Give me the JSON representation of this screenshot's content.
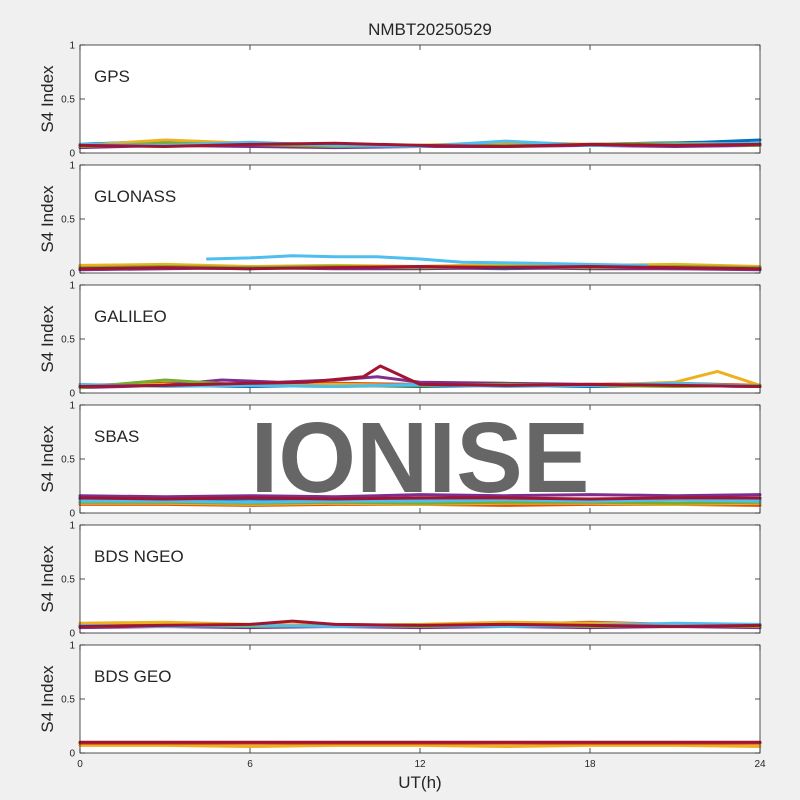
{
  "figure": {
    "title": "NMBT20250529",
    "xlabel": "UT(h)",
    "watermark": "IONISE"
  },
  "chart_data": [
    {
      "type": "line",
      "panel": "GPS",
      "ylabel": "S4 Index",
      "xlim": [
        0,
        24
      ],
      "ylim": [
        0,
        1
      ],
      "xticks": [
        "0",
        "6",
        "12",
        "18",
        "24"
      ],
      "yticks": [
        "0",
        "0.5",
        "1"
      ],
      "series": [
        {
          "color": "#0072BD",
          "x": [
            0,
            2,
            4,
            6,
            8,
            10,
            12,
            14,
            16,
            18,
            20,
            22,
            24
          ],
          "y": [
            0.08,
            0.1,
            0.09,
            0.07,
            0.08,
            0.07,
            0.06,
            0.08,
            0.07,
            0.08,
            0.09,
            0.1,
            0.12
          ]
        },
        {
          "color": "#D95319",
          "x": [
            0,
            3,
            6,
            9,
            12,
            15,
            18,
            21,
            24
          ],
          "y": [
            0.06,
            0.08,
            0.07,
            0.06,
            0.07,
            0.08,
            0.07,
            0.09,
            0.08
          ]
        },
        {
          "color": "#EDB120",
          "x": [
            0,
            3,
            6,
            9,
            12,
            15,
            18,
            21,
            24
          ],
          "y": [
            0.07,
            0.12,
            0.09,
            0.08,
            0.07,
            0.1,
            0.08,
            0.09,
            0.08
          ]
        },
        {
          "color": "#7E2F8E",
          "x": [
            0,
            3,
            6,
            9,
            12,
            15,
            18,
            21,
            24
          ],
          "y": [
            0.05,
            0.07,
            0.06,
            0.05,
            0.06,
            0.06,
            0.07,
            0.06,
            0.07
          ]
        },
        {
          "color": "#77AC30",
          "x": [
            0,
            3,
            6,
            9,
            12,
            15,
            18,
            21,
            24
          ],
          "y": [
            0.06,
            0.09,
            0.08,
            0.06,
            0.07,
            0.07,
            0.08,
            0.09,
            0.07
          ]
        },
        {
          "color": "#4DBEEE",
          "x": [
            0,
            3,
            6,
            9,
            12,
            15,
            18,
            21,
            24
          ],
          "y": [
            0.08,
            0.07,
            0.1,
            0.07,
            0.06,
            0.11,
            0.07,
            0.08,
            0.09
          ]
        },
        {
          "color": "#A2142F",
          "x": [
            0,
            3,
            6,
            9,
            12,
            15,
            18,
            21,
            24
          ],
          "y": [
            0.07,
            0.06,
            0.08,
            0.09,
            0.07,
            0.06,
            0.08,
            0.07,
            0.08
          ]
        }
      ]
    },
    {
      "type": "line",
      "panel": "GLONASS",
      "ylabel": "S4 Index",
      "xlim": [
        0,
        24
      ],
      "ylim": [
        0,
        1
      ],
      "xticks": [
        "0",
        "6",
        "12",
        "18",
        "24"
      ],
      "yticks": [
        "0",
        "0.5",
        "1"
      ],
      "series": [
        {
          "color": "#0072BD",
          "x": [
            0,
            3,
            6,
            9,
            12,
            15,
            18,
            21,
            24
          ],
          "y": [
            0.04,
            0.05,
            0.04,
            0.06,
            0.05,
            0.04,
            0.05,
            0.04,
            0.05
          ]
        },
        {
          "color": "#D95319",
          "x": [
            0,
            3,
            6,
            9,
            12,
            15,
            18,
            21,
            24
          ],
          "y": [
            0.06,
            0.05,
            0.06,
            0.05,
            0.06,
            0.07,
            0.06,
            0.05,
            0.04
          ]
        },
        {
          "color": "#EDB120",
          "x": [
            0,
            3,
            6,
            9,
            12,
            15,
            18,
            21,
            24
          ],
          "y": [
            0.07,
            0.08,
            0.06,
            0.07,
            0.06,
            0.08,
            0.07,
            0.08,
            0.06
          ]
        },
        {
          "color": "#7E2F8E",
          "x": [
            0,
            3,
            6,
            9,
            12,
            15,
            18,
            21,
            24
          ],
          "y": [
            0.03,
            0.04,
            0.05,
            0.04,
            0.04,
            0.05,
            0.04,
            0.04,
            0.03
          ]
        },
        {
          "color": "#77AC30",
          "x": [
            0,
            3,
            6,
            9,
            12,
            15,
            18,
            21,
            24
          ],
          "y": [
            0.05,
            0.06,
            0.05,
            0.06,
            0.05,
            0.06,
            0.05,
            0.06,
            0.05
          ]
        },
        {
          "color": "#4DBEEE",
          "x": [
            4.5,
            6,
            7.5,
            9,
            10.5,
            12,
            13.5,
            16,
            18,
            20
          ],
          "y": [
            0.13,
            0.14,
            0.16,
            0.15,
            0.15,
            0.13,
            0.1,
            0.09,
            0.08,
            0.07
          ]
        },
        {
          "color": "#A2142F",
          "x": [
            0,
            3,
            6,
            9,
            12,
            15,
            18,
            21,
            24
          ],
          "y": [
            0.04,
            0.05,
            0.04,
            0.05,
            0.06,
            0.05,
            0.06,
            0.05,
            0.04
          ]
        }
      ]
    },
    {
      "type": "line",
      "panel": "GALILEO",
      "ylabel": "S4 Index",
      "xlim": [
        0,
        24
      ],
      "ylim": [
        0,
        1
      ],
      "xticks": [
        "0",
        "6",
        "12",
        "18",
        "24"
      ],
      "yticks": [
        "0",
        "0.5",
        "1"
      ],
      "series": [
        {
          "color": "#0072BD",
          "x": [
            0,
            3,
            6,
            9,
            12,
            15,
            18,
            21,
            24
          ],
          "y": [
            0.06,
            0.07,
            0.06,
            0.07,
            0.06,
            0.07,
            0.06,
            0.07,
            0.06
          ]
        },
        {
          "color": "#D95319",
          "x": [
            0,
            3,
            6,
            9,
            12,
            15,
            18,
            21,
            24
          ],
          "y": [
            0.07,
            0.09,
            0.08,
            0.09,
            0.08,
            0.07,
            0.08,
            0.09,
            0.07
          ]
        },
        {
          "color": "#EDB120",
          "x": [
            0,
            3,
            6,
            9,
            12,
            15,
            18,
            21,
            22.5,
            24
          ],
          "y": [
            0.06,
            0.08,
            0.07,
            0.08,
            0.07,
            0.08,
            0.07,
            0.1,
            0.2,
            0.07
          ]
        },
        {
          "color": "#7E2F8E",
          "x": [
            0,
            3,
            5,
            7,
            9,
            10.5,
            12,
            15,
            18,
            21,
            24
          ],
          "y": [
            0.05,
            0.07,
            0.12,
            0.1,
            0.12,
            0.15,
            0.1,
            0.09,
            0.08,
            0.07,
            0.06
          ]
        },
        {
          "color": "#77AC30",
          "x": [
            0,
            3,
            6,
            9,
            12,
            15,
            18,
            21,
            24
          ],
          "y": [
            0.05,
            0.12,
            0.07,
            0.06,
            0.07,
            0.08,
            0.07,
            0.06,
            0.07
          ]
        },
        {
          "color": "#4DBEEE",
          "x": [
            0,
            3,
            6,
            9,
            12,
            15,
            18,
            21,
            24
          ],
          "y": [
            0.08,
            0.06,
            0.07,
            0.06,
            0.08,
            0.06,
            0.07,
            0.09,
            0.06
          ]
        },
        {
          "color": "#A2142F",
          "x": [
            0,
            3,
            6,
            8,
            10,
            10.6,
            12,
            15,
            18,
            21,
            24
          ],
          "y": [
            0.06,
            0.07,
            0.09,
            0.1,
            0.15,
            0.25,
            0.08,
            0.07,
            0.08,
            0.07,
            0.06
          ]
        }
      ]
    },
    {
      "type": "line",
      "panel": "SBAS",
      "ylabel": "S4 Index",
      "xlim": [
        0,
        24
      ],
      "ylim": [
        0,
        1
      ],
      "xticks": [
        "0",
        "6",
        "12",
        "18",
        "24"
      ],
      "yticks": [
        "0",
        "0.5",
        "1"
      ],
      "series": [
        {
          "color": "#0072BD",
          "x": [
            0,
            3,
            6,
            9,
            12,
            15,
            18,
            21,
            24
          ],
          "y": [
            0.13,
            0.12,
            0.13,
            0.12,
            0.13,
            0.13,
            0.12,
            0.13,
            0.12
          ]
        },
        {
          "color": "#D95319",
          "x": [
            0,
            3,
            6,
            9,
            12,
            15,
            18,
            21,
            24
          ],
          "y": [
            0.08,
            0.08,
            0.07,
            0.08,
            0.08,
            0.07,
            0.08,
            0.08,
            0.07
          ]
        },
        {
          "color": "#EDB120",
          "x": [
            0,
            3,
            6,
            9,
            12,
            15,
            18,
            21,
            24
          ],
          "y": [
            0.09,
            0.09,
            0.08,
            0.09,
            0.08,
            0.09,
            0.09,
            0.08,
            0.09
          ]
        },
        {
          "color": "#7E2F8E",
          "x": [
            0,
            3,
            6,
            9,
            12,
            15,
            18,
            21,
            24
          ],
          "y": [
            0.16,
            0.15,
            0.16,
            0.15,
            0.17,
            0.16,
            0.17,
            0.16,
            0.17
          ]
        },
        {
          "color": "#77AC30",
          "x": [
            0,
            3,
            6,
            9,
            12,
            15,
            18,
            21,
            24
          ],
          "y": [
            0.1,
            0.1,
            0.09,
            0.1,
            0.09,
            0.1,
            0.1,
            0.09,
            0.1
          ]
        },
        {
          "color": "#4DBEEE",
          "x": [
            0,
            3,
            6,
            9,
            12,
            15,
            18,
            21,
            24
          ],
          "y": [
            0.11,
            0.11,
            0.1,
            0.11,
            0.11,
            0.12,
            0.11,
            0.12,
            0.11
          ]
        },
        {
          "color": "#A2142F",
          "x": [
            0,
            3,
            6,
            9,
            12,
            15,
            18,
            21,
            24
          ],
          "y": [
            0.14,
            0.13,
            0.14,
            0.13,
            0.14,
            0.14,
            0.13,
            0.14,
            0.14
          ]
        }
      ]
    },
    {
      "type": "line",
      "panel": "BDS NGEO",
      "ylabel": "S4 Index",
      "xlim": [
        0,
        24
      ],
      "ylim": [
        0,
        1
      ],
      "xticks": [
        "0",
        "6",
        "12",
        "18",
        "24"
      ],
      "yticks": [
        "0",
        "0.5",
        "1"
      ],
      "series": [
        {
          "color": "#0072BD",
          "x": [
            0,
            3,
            6,
            9,
            12,
            15,
            18,
            21,
            24
          ],
          "y": [
            0.07,
            0.06,
            0.07,
            0.06,
            0.07,
            0.06,
            0.07,
            0.06,
            0.07
          ]
        },
        {
          "color": "#D95319",
          "x": [
            0,
            3,
            6,
            9,
            12,
            15,
            18,
            21,
            24
          ],
          "y": [
            0.06,
            0.08,
            0.07,
            0.08,
            0.07,
            0.08,
            0.1,
            0.08,
            0.07
          ]
        },
        {
          "color": "#EDB120",
          "x": [
            0,
            3,
            6,
            9,
            12,
            15,
            18,
            21,
            24
          ],
          "y": [
            0.09,
            0.1,
            0.08,
            0.07,
            0.08,
            0.1,
            0.09,
            0.08,
            0.07
          ]
        },
        {
          "color": "#7E2F8E",
          "x": [
            0,
            3,
            6,
            9,
            12,
            15,
            18,
            21,
            24
          ],
          "y": [
            0.05,
            0.06,
            0.05,
            0.06,
            0.05,
            0.06,
            0.05,
            0.06,
            0.05
          ]
        },
        {
          "color": "#77AC30",
          "x": [
            0,
            3,
            6,
            9,
            12,
            15,
            18,
            21,
            24
          ],
          "y": [
            0.06,
            0.07,
            0.06,
            0.07,
            0.06,
            0.07,
            0.06,
            0.07,
            0.06
          ]
        },
        {
          "color": "#4DBEEE",
          "x": [
            0,
            3,
            6,
            9,
            12,
            15,
            18,
            21,
            24
          ],
          "y": [
            0.07,
            0.06,
            0.07,
            0.06,
            0.07,
            0.06,
            0.07,
            0.09,
            0.08
          ]
        },
        {
          "color": "#A2142F",
          "x": [
            0,
            3,
            6,
            7.5,
            9,
            12,
            15,
            18,
            21,
            24
          ],
          "y": [
            0.06,
            0.07,
            0.08,
            0.11,
            0.08,
            0.07,
            0.08,
            0.07,
            0.06,
            0.07
          ]
        }
      ]
    },
    {
      "type": "line",
      "panel": "BDS GEO",
      "ylabel": "S4 Index",
      "xlim": [
        0,
        24
      ],
      "ylim": [
        0,
        1
      ],
      "xticks": [
        "0",
        "6",
        "12",
        "18",
        "24"
      ],
      "yticks": [
        "0",
        "0.5",
        "1"
      ],
      "series": [
        {
          "color": "#EDB120",
          "x": [
            0,
            3,
            6,
            9,
            12,
            15,
            18,
            21,
            24
          ],
          "y": [
            0.07,
            0.07,
            0.06,
            0.07,
            0.07,
            0.06,
            0.07,
            0.07,
            0.06
          ]
        },
        {
          "color": "#D95319",
          "x": [
            0,
            3,
            6,
            9,
            12,
            15,
            18,
            21,
            24
          ],
          "y": [
            0.09,
            0.09,
            0.09,
            0.09,
            0.09,
            0.09,
            0.09,
            0.09,
            0.09
          ]
        },
        {
          "color": "#A2142F",
          "x": [
            0,
            3,
            6,
            9,
            12,
            15,
            18,
            21,
            24
          ],
          "y": [
            0.1,
            0.1,
            0.1,
            0.1,
            0.1,
            0.1,
            0.1,
            0.1,
            0.1
          ]
        }
      ]
    }
  ]
}
